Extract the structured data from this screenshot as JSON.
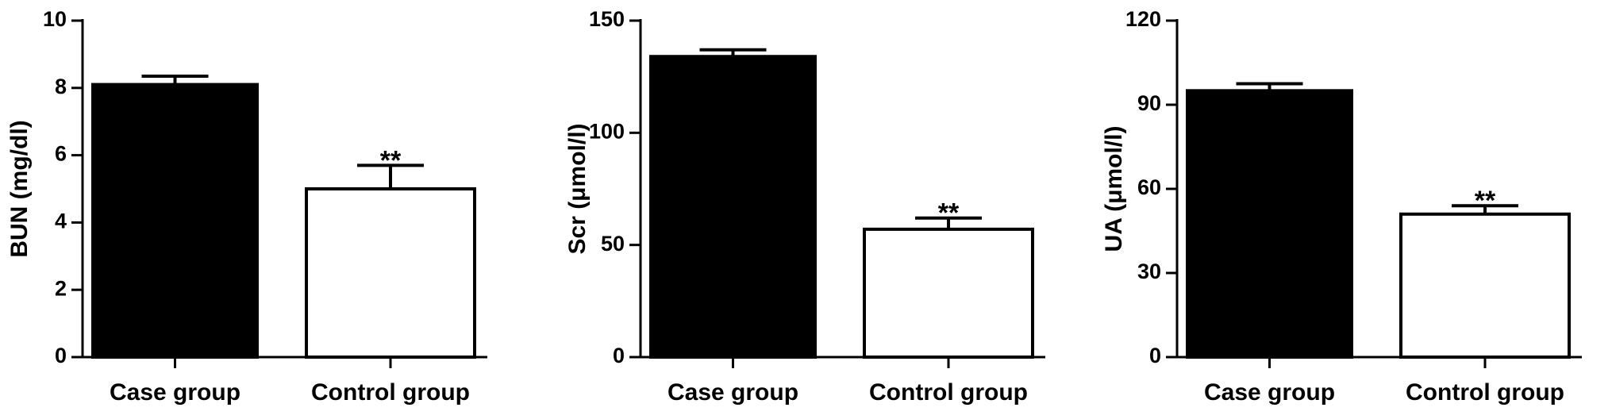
{
  "chart_data": [
    {
      "type": "bar",
      "y_label": "BUN (mg/dl)",
      "categories": [
        "Case group",
        "Control group"
      ],
      "values": [
        8.1,
        5.0
      ],
      "errors": [
        0.25,
        0.7
      ],
      "colors": [
        "#000000",
        "#ffffff"
      ],
      "significance": [
        null,
        "**"
      ],
      "ylim": [
        0,
        10
      ],
      "yticks": [
        0,
        2,
        4,
        6,
        8,
        10
      ]
    },
    {
      "type": "bar",
      "y_label": "Scr (μmol/l)",
      "categories": [
        "Case group",
        "Control group"
      ],
      "values": [
        134,
        57
      ],
      "errors": [
        3,
        5
      ],
      "colors": [
        "#000000",
        "#ffffff"
      ],
      "significance": [
        null,
        "**"
      ],
      "ylim": [
        0,
        150
      ],
      "yticks": [
        0,
        50,
        100,
        150
      ]
    },
    {
      "type": "bar",
      "y_label": "UA (μmol/l)",
      "categories": [
        "Case group",
        "Control group"
      ],
      "values": [
        95,
        51
      ],
      "errors": [
        2.5,
        3
      ],
      "colors": [
        "#000000",
        "#ffffff"
      ],
      "significance": [
        null,
        "**"
      ],
      "ylim": [
        0,
        120
      ],
      "yticks": [
        0,
        30,
        60,
        90,
        120
      ]
    }
  ]
}
